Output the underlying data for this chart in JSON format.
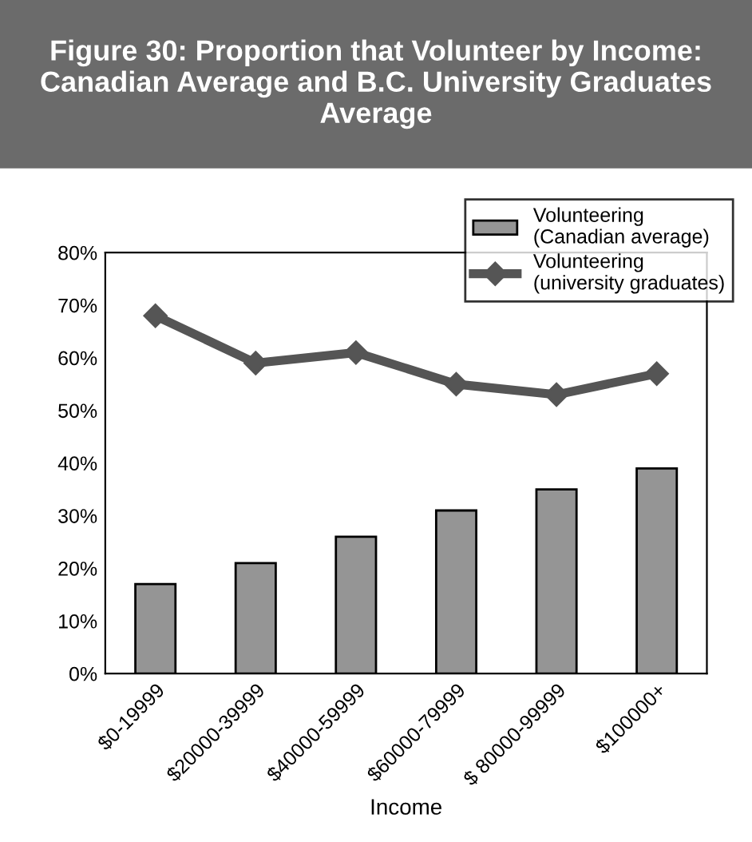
{
  "chart_data": {
    "type": "bar",
    "title": "Figure 30: Proportion that Volunteer by Income: Canadian Average and B.C. University Graduates Average",
    "xlabel": "Income",
    "categories": [
      "$0-19999",
      "$20000-39999",
      "$40000-59999",
      "$60000-79999",
      "$ 80000-99999",
      "$100000+"
    ],
    "series": [
      {
        "name": "Volunteering\n(Canadian average)",
        "color": "#959595",
        "values": [
          17,
          21,
          26,
          31,
          35,
          39
        ]
      },
      {
        "name": "Volunteering\n(university graduates)",
        "type": "line",
        "color": "#555555",
        "marker": "diamond",
        "values": [
          68,
          59,
          61,
          55,
          53,
          57
        ]
      }
    ],
    "ylim": [
      0,
      80
    ],
    "yticks": [
      {
        "value": 0,
        "label": "0%"
      },
      {
        "value": 10,
        "label": "10%"
      },
      {
        "value": 20,
        "label": "20%"
      },
      {
        "value": 30,
        "label": "30%"
      },
      {
        "value": 40,
        "label": "40%"
      },
      {
        "value": 50,
        "label": "50%"
      },
      {
        "value": 60,
        "label": "60%"
      },
      {
        "value": 70,
        "label": "70%"
      },
      {
        "value": 80,
        "label": "80%"
      }
    ],
    "grid": false,
    "legend": "top right"
  }
}
